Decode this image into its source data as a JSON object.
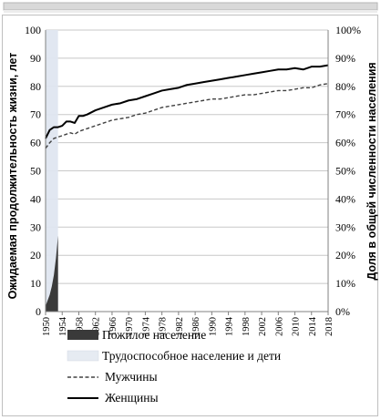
{
  "chart_data": {
    "type": "line",
    "ylabel_left": "Ожидаемая продолжительность жизни, лет",
    "ylabel_right": "Доля в общей численности населения",
    "y_left_ticks": [
      "0",
      "10",
      "20",
      "30",
      "40",
      "50",
      "60",
      "70",
      "80",
      "90",
      "100"
    ],
    "y_right_ticks": [
      "0%",
      "10%",
      "20%",
      "30%",
      "40%",
      "50%",
      "60%",
      "70%",
      "80%",
      "90%",
      "100%"
    ],
    "ylim_left": [
      0,
      100
    ],
    "ylim_right": [
      0,
      1
    ],
    "x_ticks": [
      "1950",
      "1954",
      "1958",
      "1962",
      "1966",
      "1970",
      "1974",
      "1978",
      "1982",
      "1986",
      "1990",
      "1994",
      "1998",
      "2002",
      "2006",
      "2010",
      "2014",
      "2018"
    ],
    "xlim": [
      1950,
      2018
    ],
    "grid": true,
    "legend_position": "bottom",
    "series": [
      {
        "name": "Пожилое население",
        "kind": "area",
        "color": "#3a3a3a",
        "x": [
          1950,
          1950.5,
          1951,
          1951.5,
          1952,
          1952.5,
          1953
        ],
        "y": [
          0.02,
          0.04,
          0.06,
          0.09,
          0.13,
          0.19,
          0.27
        ]
      },
      {
        "name": "Трудоспособное население и дети",
        "kind": "area",
        "color": "#dfe6f0",
        "x": [
          1950,
          1951,
          1952,
          1953
        ],
        "y": [
          1.0,
          1.0,
          1.0,
          1.0
        ]
      },
      {
        "name": "Мужчины",
        "kind": "line",
        "style": "dashed",
        "color": "#404040",
        "x": [
          1950,
          1951,
          1952,
          1953,
          1954,
          1955,
          1956,
          1957,
          1958,
          1959,
          1960,
          1962,
          1964,
          1966,
          1968,
          1970,
          1972,
          1974,
          1976,
          1978,
          1980,
          1982,
          1984,
          1986,
          1988,
          1990,
          1992,
          1994,
          1996,
          1998,
          2000,
          2002,
          2004,
          2006,
          2008,
          2010,
          2012,
          2014,
          2016,
          2018
        ],
        "y": [
          58,
          60,
          61.5,
          62,
          62.5,
          63,
          63.5,
          63,
          64,
          64.5,
          65,
          66,
          67,
          68,
          68.5,
          69,
          70,
          70.5,
          71.5,
          72.5,
          73,
          73.5,
          74,
          74.5,
          75,
          75.5,
          75.5,
          76,
          76.5,
          77,
          77,
          77.5,
          78,
          78.5,
          78.5,
          79,
          79.5,
          79.5,
          80.5,
          81
        ]
      },
      {
        "name": "Женщины",
        "kind": "line",
        "style": "solid",
        "color": "#000000",
        "x": [
          1950,
          1951,
          1952,
          1953,
          1954,
          1955,
          1956,
          1957,
          1958,
          1959,
          1960,
          1962,
          1964,
          1966,
          1968,
          1970,
          1972,
          1974,
          1976,
          1978,
          1980,
          1982,
          1984,
          1986,
          1988,
          1990,
          1992,
          1994,
          1996,
          1998,
          2000,
          2002,
          2004,
          2006,
          2008,
          2010,
          2012,
          2014,
          2016,
          2018
        ],
        "y": [
          61.5,
          64.5,
          65.5,
          65.5,
          66,
          67.5,
          67.5,
          67,
          69.5,
          69.5,
          70,
          71.5,
          72.5,
          73.5,
          74,
          75,
          75.5,
          76.5,
          77.5,
          78.5,
          79,
          79.5,
          80.5,
          81,
          81.5,
          82,
          82.5,
          83,
          83.5,
          84,
          84.5,
          85,
          85.5,
          86,
          86,
          86.5,
          86,
          87,
          87,
          87.5
        ]
      }
    ]
  }
}
